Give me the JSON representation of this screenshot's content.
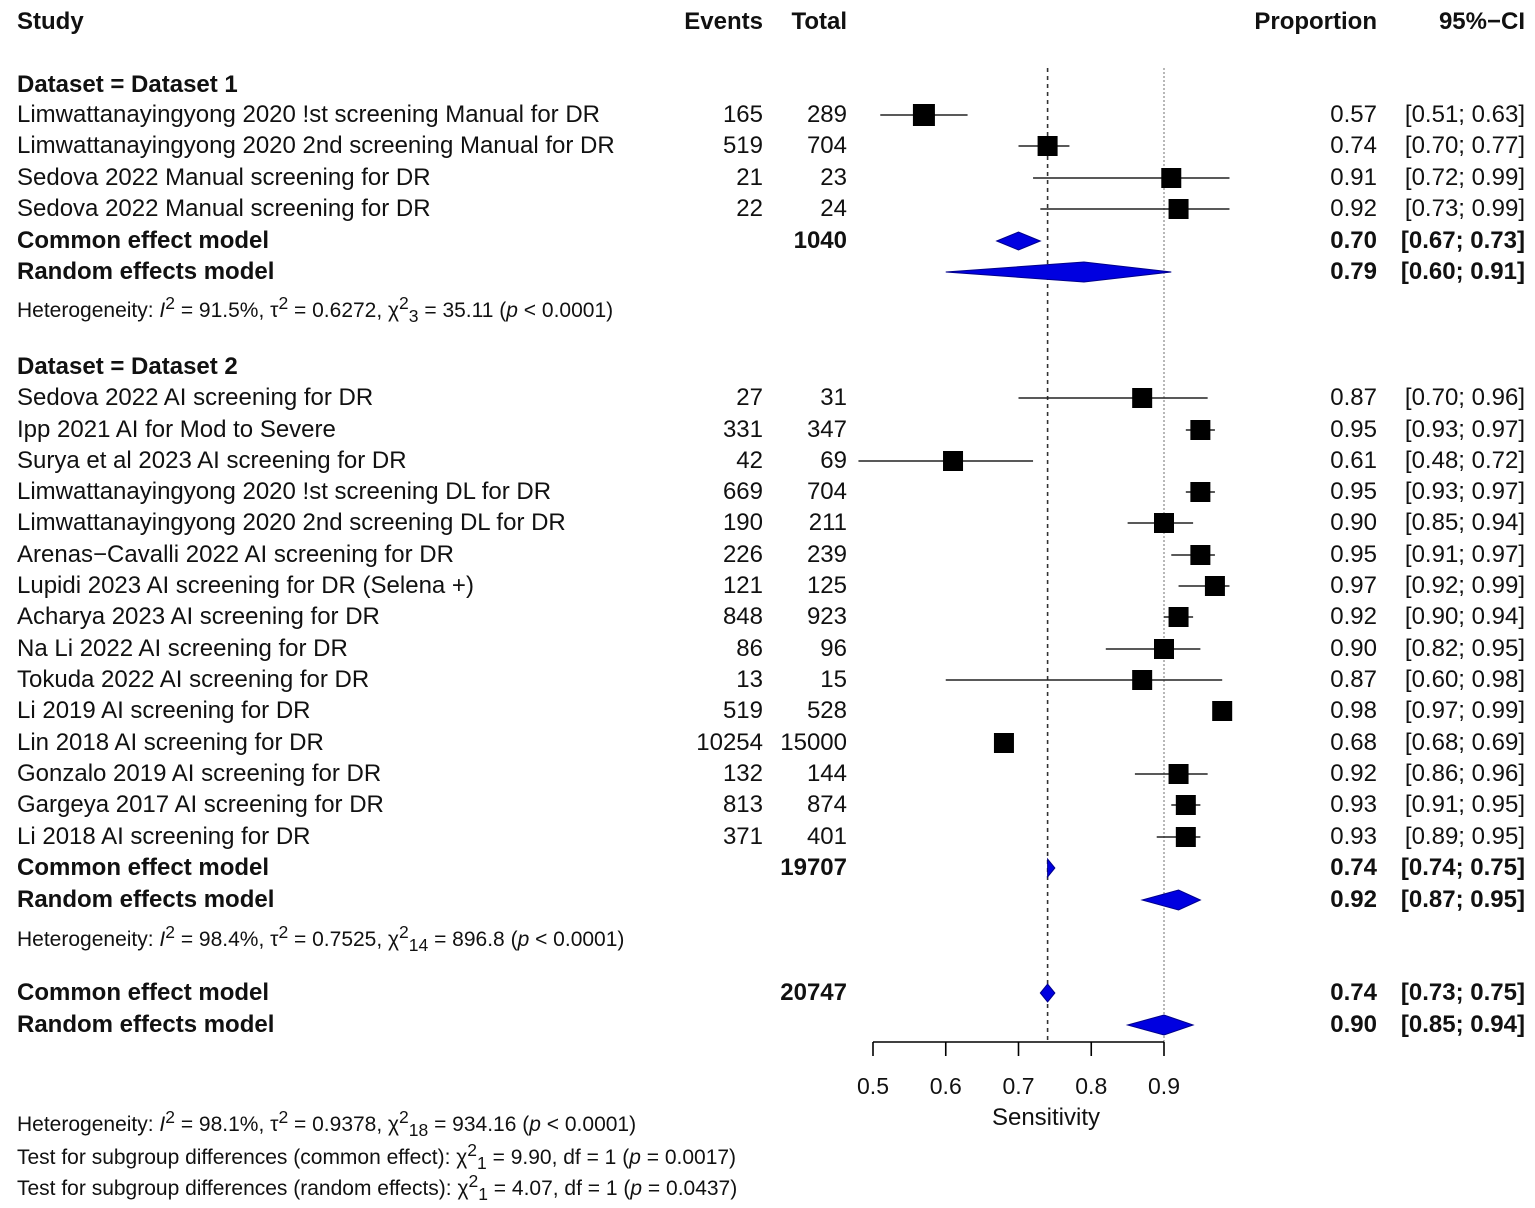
{
  "columns": {
    "study": "Study",
    "events": "Events",
    "total": "Total",
    "proportion": "Proportion",
    "ci": "95%−CI"
  },
  "chart_data": {
    "type": "forest",
    "xlabel": "Sensitivity",
    "xlim": [
      0.5,
      0.9
    ],
    "ticks": [
      "0.5",
      "0.6",
      "0.7",
      "0.8",
      "0.9"
    ],
    "reference_lines": [
      0.74,
      0.9
    ],
    "groups": [
      {
        "label": "Dataset = Dataset 1",
        "studies": [
          {
            "name": "Limwattanayingyong 2020 !st screening Manual for DR",
            "events": "165",
            "total": "289",
            "prop": "0.57",
            "ci": "[0.51; 0.63]",
            "est": 0.57,
            "lo": 0.51,
            "hi": 0.63,
            "w": 22
          },
          {
            "name": "Limwattanayingyong 2020 2nd screening Manual for DR",
            "events": "519",
            "total": "704",
            "prop": "0.74",
            "ci": "[0.70; 0.77]",
            "est": 0.74,
            "lo": 0.7,
            "hi": 0.77,
            "w": 20
          },
          {
            "name": "Sedova 2022 Manual screening for DR",
            "events": "21",
            "total": "23",
            "prop": "0.91",
            "ci": "[0.72; 0.99]",
            "est": 0.91,
            "lo": 0.72,
            "hi": 0.99,
            "w": 20
          },
          {
            "name": "Sedova 2022 Manual screening for DR",
            "events": "22",
            "total": "24",
            "prop": "0.92",
            "ci": "[0.73; 0.99]",
            "est": 0.92,
            "lo": 0.73,
            "hi": 0.99,
            "w": 20
          }
        ],
        "common": {
          "label": "Common effect model",
          "total": "1040",
          "prop": "0.70",
          "ci": "[0.67; 0.73]",
          "est": 0.7,
          "lo": 0.67,
          "hi": 0.73
        },
        "random": {
          "label": "Random effects model",
          "prop": "0.79",
          "ci": "[0.60; 0.91]",
          "est": 0.79,
          "lo": 0.6,
          "hi": 0.91
        },
        "heterogeneity_html": "Heterogeneity: <i>I</i><sup>2</sup> = 91.5%, τ<sup>2</sup> = 0.6272, χ<sup>2</sup><sub>3</sub> = 35.11 (<i>p</i> &lt; 0.0001)"
      },
      {
        "label": "Dataset = Dataset 2",
        "studies": [
          {
            "name": "Sedova 2022 AI screening for DR",
            "events": "27",
            "total": "31",
            "prop": "0.87",
            "ci": "[0.70; 0.96]",
            "est": 0.87,
            "lo": 0.7,
            "hi": 0.96,
            "w": 20
          },
          {
            "name": "Ipp 2021 AI for Mod to Severe",
            "events": "331",
            "total": "347",
            "prop": "0.95",
            "ci": "[0.93; 0.97]",
            "est": 0.95,
            "lo": 0.93,
            "hi": 0.97,
            "w": 20
          },
          {
            "name": "Surya et al 2023 AI screening for DR",
            "events": "42",
            "total": "69",
            "prop": "0.61",
            "ci": "[0.48; 0.72]",
            "est": 0.61,
            "lo": 0.48,
            "hi": 0.72,
            "w": 20
          },
          {
            "name": "Limwattanayingyong 2020 !st screening DL for DR",
            "events": "669",
            "total": "704",
            "prop": "0.95",
            "ci": "[0.93; 0.97]",
            "est": 0.95,
            "lo": 0.93,
            "hi": 0.97,
            "w": 20
          },
          {
            "name": "Limwattanayingyong 2020 2nd screening DL for DR",
            "events": "190",
            "total": "211",
            "prop": "0.90",
            "ci": "[0.85; 0.94]",
            "est": 0.9,
            "lo": 0.85,
            "hi": 0.94,
            "w": 20
          },
          {
            "name": "Arenas−Cavalli 2022 AI screening for DR",
            "events": "226",
            "total": "239",
            "prop": "0.95",
            "ci": "[0.91; 0.97]",
            "est": 0.95,
            "lo": 0.91,
            "hi": 0.97,
            "w": 20
          },
          {
            "name": "Lupidi 2023 AI screening for DR (Selena +)",
            "events": "121",
            "total": "125",
            "prop": "0.97",
            "ci": "[0.92; 0.99]",
            "est": 0.97,
            "lo": 0.92,
            "hi": 0.99,
            "w": 20
          },
          {
            "name": "Acharya 2023 AI screening for DR",
            "events": "848",
            "total": "923",
            "prop": "0.92",
            "ci": "[0.90; 0.94]",
            "est": 0.92,
            "lo": 0.9,
            "hi": 0.94,
            "w": 20
          },
          {
            "name": "Na Li 2022 AI screening for DR",
            "events": "86",
            "total": "96",
            "prop": "0.90",
            "ci": "[0.82; 0.95]",
            "est": 0.9,
            "lo": 0.82,
            "hi": 0.95,
            "w": 20
          },
          {
            "name": "Tokuda 2022 AI screening for DR",
            "events": "13",
            "total": "15",
            "prop": "0.87",
            "ci": "[0.60; 0.98]",
            "est": 0.87,
            "lo": 0.6,
            "hi": 0.98,
            "w": 20
          },
          {
            "name": "Li 2019 AI screening for DR",
            "events": "519",
            "total": "528",
            "prop": "0.98",
            "ci": "[0.97; 0.99]",
            "est": 0.98,
            "lo": 0.97,
            "hi": 0.99,
            "w": 20
          },
          {
            "name": "Lin 2018 AI screening for DR",
            "events": "10254",
            "total": "15000",
            "prop": "0.68",
            "ci": "[0.68; 0.69]",
            "est": 0.68,
            "lo": 0.68,
            "hi": 0.69,
            "w": 20
          },
          {
            "name": "Gonzalo 2019 AI screening for DR",
            "events": "132",
            "total": "144",
            "prop": "0.92",
            "ci": "[0.86; 0.96]",
            "est": 0.92,
            "lo": 0.86,
            "hi": 0.96,
            "w": 20
          },
          {
            "name": "Gargeya 2017 AI screening for DR",
            "events": "813",
            "total": "874",
            "prop": "0.93",
            "ci": "[0.91; 0.95]",
            "est": 0.93,
            "lo": 0.91,
            "hi": 0.95,
            "w": 20
          },
          {
            "name": "Li 2018 AI screening for DR",
            "events": "371",
            "total": "401",
            "prop": "0.93",
            "ci": "[0.89; 0.95]",
            "est": 0.93,
            "lo": 0.89,
            "hi": 0.95,
            "w": 20
          }
        ],
        "common": {
          "label": "Common effect model",
          "total": "19707",
          "prop": "0.74",
          "ci": "[0.74; 0.75]",
          "est": 0.74,
          "lo": 0.74,
          "hi": 0.75
        },
        "random": {
          "label": "Random effects model",
          "prop": "0.92",
          "ci": "[0.87; 0.95]",
          "est": 0.92,
          "lo": 0.87,
          "hi": 0.95
        },
        "heterogeneity_html": "Heterogeneity: <i>I</i><sup>2</sup> = 98.4%, τ<sup>2</sup> = 0.7525, χ<sup>2</sup><sub>14</sub> = 896.8 (<i>p</i> &lt; 0.0001)"
      }
    ],
    "overall": {
      "common": {
        "label": "Common effect model",
        "total": "20747",
        "prop": "0.74",
        "ci": "[0.73; 0.75]",
        "est": 0.74,
        "lo": 0.73,
        "hi": 0.75
      },
      "random": {
        "label": "Random effects model",
        "prop": "0.90",
        "ci": "[0.85; 0.94]",
        "est": 0.9,
        "lo": 0.85,
        "hi": 0.94
      },
      "heterogeneity_html": "Heterogeneity: <i>I</i><sup>2</sup> = 98.1%, τ<sup>2</sup> = 0.9378, χ<sup>2</sup><sub>18</sub> = 934.16 (<i>p</i> &lt; 0.0001)",
      "subgroup_common_html": "Test for subgroup differences (common effect): χ<sup>2</sup><sub>1</sub> = 9.90, df = 1 (<i>p</i> = 0.0017)",
      "subgroup_random_html": "Test for subgroup differences (random effects): χ<sup>2</sup><sub>1</sub> = 4.07, df = 1 (<i>p</i> = 0.0437)"
    }
  }
}
